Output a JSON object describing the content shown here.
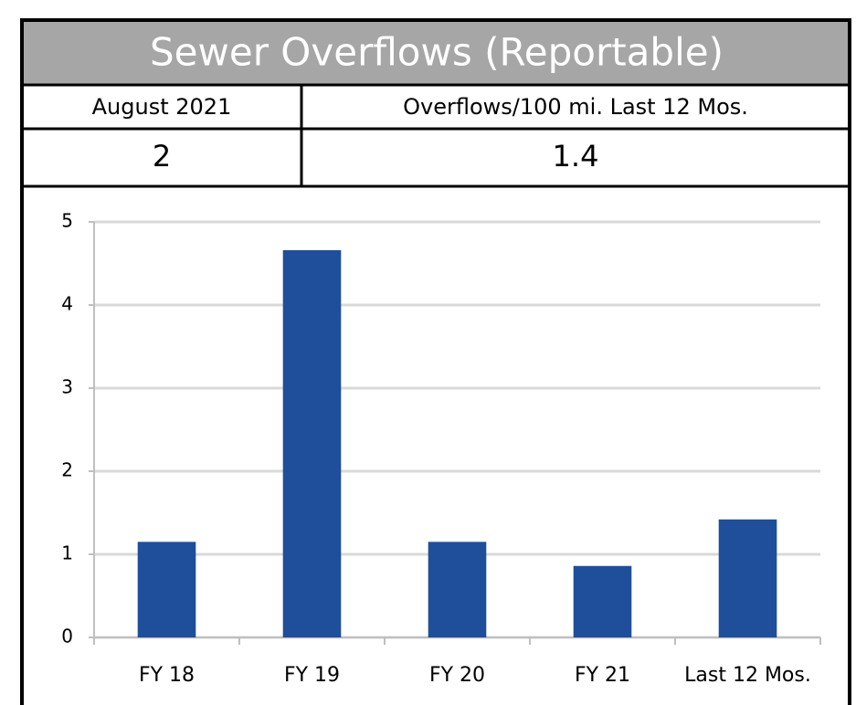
{
  "header": {
    "title": "Sewer Overflows (Reportable)"
  },
  "table": {
    "headers": [
      "August 2021",
      "Overflows/100 mi. Last 12 Mos."
    ],
    "values": [
      2,
      1.4
    ]
  },
  "chart_data": {
    "type": "bar",
    "categories": [
      "FY 18",
      "FY 19",
      "FY 20",
      "FY 21",
      "Last 12 Mos."
    ],
    "values": [
      1.15,
      4.66,
      1.15,
      0.86,
      1.42
    ],
    "color": "#1f4e9a",
    "ylim": [
      0,
      5
    ],
    "yticks": [
      0,
      1,
      2,
      3,
      4,
      5
    ],
    "grid": true
  }
}
